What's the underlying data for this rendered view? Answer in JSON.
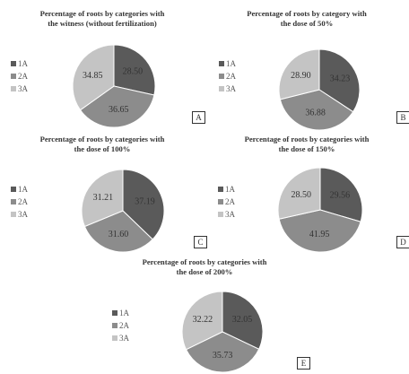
{
  "chart_data": [
    {
      "type": "pie",
      "title": [
        "Percentage of roots by categories with",
        "the witness (without fertilization)"
      ],
      "categories": [
        "1A",
        "2A",
        "3A"
      ],
      "values": [
        28.5,
        36.65,
        34.85
      ],
      "value_labels": [
        "28.50",
        "36.65",
        "34.85"
      ],
      "colors": [
        "#5a5a5a",
        "#8c8c8c",
        "#c4c4c4"
      ],
      "legend_position": "left",
      "panel_label": "A"
    },
    {
      "type": "pie",
      "title": [
        "Percentage of roots by category with",
        "the dose of 50%"
      ],
      "categories": [
        "1A",
        "2A",
        "3A"
      ],
      "values": [
        34.23,
        36.88,
        28.9
      ],
      "value_labels": [
        "34.23",
        "36.88",
        "28.90"
      ],
      "colors": [
        "#5a5a5a",
        "#8c8c8c",
        "#c4c4c4"
      ],
      "legend_position": "left",
      "panel_label": "B"
    },
    {
      "type": "pie",
      "title": [
        "Percentage of roots by categories with",
        "the dose of 100%"
      ],
      "categories": [
        "1A",
        "2A",
        "3A"
      ],
      "values": [
        37.19,
        31.6,
        31.21
      ],
      "value_labels": [
        "37.19",
        "31.60",
        "31.21"
      ],
      "colors": [
        "#5a5a5a",
        "#8c8c8c",
        "#c4c4c4"
      ],
      "legend_position": "left",
      "panel_label": "C"
    },
    {
      "type": "pie",
      "title": [
        "Percentage of roots by categories with",
        "the dose of 150%"
      ],
      "categories": [
        "1A",
        "2A",
        "3A"
      ],
      "values": [
        29.56,
        41.95,
        28.5
      ],
      "value_labels": [
        "29.56",
        "41.95",
        "28.50"
      ],
      "colors": [
        "#5a5a5a",
        "#8c8c8c",
        "#c4c4c4"
      ],
      "legend_position": "left",
      "panel_label": "D"
    },
    {
      "type": "pie",
      "title": [
        "Percentage of roots by categories with",
        "the dose of 200%"
      ],
      "categories": [
        "1A",
        "2A",
        "3A"
      ],
      "values": [
        32.05,
        35.73,
        32.22
      ],
      "value_labels": [
        "32.05",
        "35.73",
        "32.22"
      ],
      "colors": [
        "#5a5a5a",
        "#8c8c8c",
        "#c4c4c4"
      ],
      "legend_position": "left",
      "panel_label": "E"
    }
  ]
}
